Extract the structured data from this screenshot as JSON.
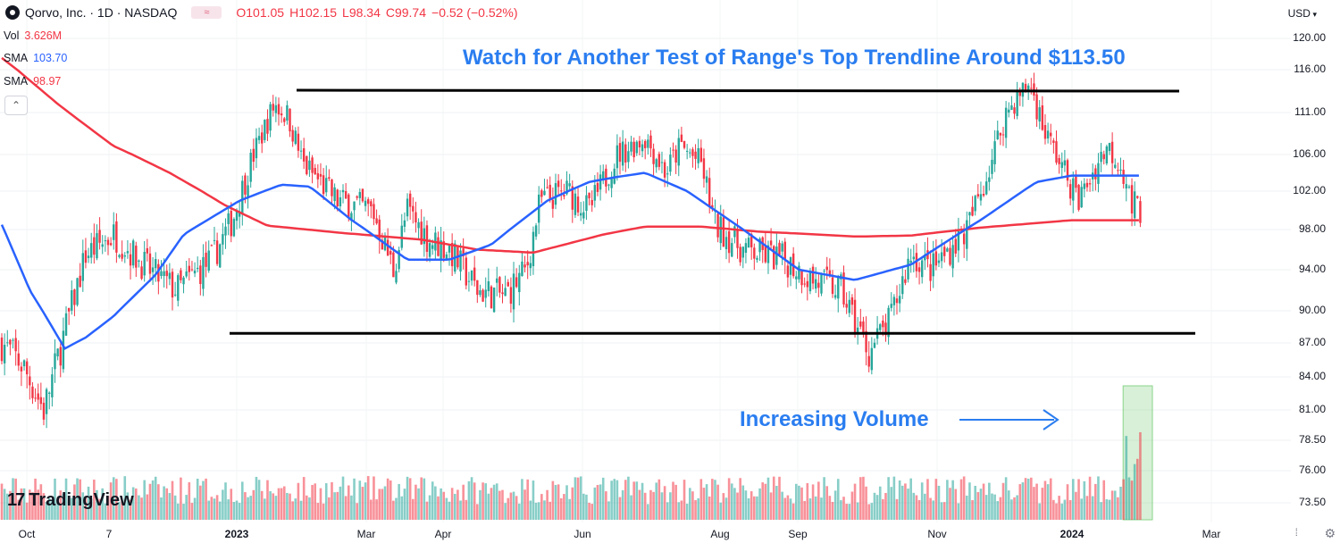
{
  "header": {
    "symbol_title": "Qorvo, Inc. · 1D · NASDAQ",
    "open": "O101.05",
    "high": "H102.15",
    "low": "L98.34",
    "close": "C99.74",
    "change": "−0.52 (−0.52%)"
  },
  "indicators": {
    "vol_label": "Vol",
    "vol_value": "3.626M",
    "sma1_label": "SMA",
    "sma1_value": "103.70",
    "sma2_label": "SMA",
    "sma2_value": "98.97"
  },
  "currency": "USD",
  "annotations": {
    "top": "Watch for Another Test of Range's Top Trendline Around $113.50",
    "volume": "Increasing Volume"
  },
  "logo": {
    "mark": "17",
    "text": "TradingView"
  },
  "colors": {
    "up": "#26a69a",
    "down": "#f23645",
    "sma_fast": "#2962ff",
    "sma_slow": "#f23645",
    "annotation": "#2a7df0",
    "trendline": "#000000",
    "highlight": "#8bd58b"
  },
  "icons": [
    "symbol-icon",
    "compare-icon",
    "collapse-icon",
    "settings-icon",
    "navigation-icon",
    "arrow-right-icon"
  ],
  "chart_data": {
    "type": "candlestick",
    "y_axis_labels": [
      "120.00",
      "116.00",
      "111.00",
      "106.00",
      "102.00",
      "98.00",
      "94.00",
      "90.00",
      "87.00",
      "84.00",
      "81.00",
      "78.50",
      "76.00",
      "73.50"
    ],
    "y_ticks": [
      120.0,
      116.0,
      111.0,
      106.0,
      102.0,
      98.0,
      94.0,
      90.0,
      87.0,
      84.0,
      81.0,
      78.5,
      76.0,
      73.5
    ],
    "x_axis_labels": [
      {
        "label": "Oct",
        "strong": false
      },
      {
        "label": "7",
        "strong": false
      },
      {
        "label": "2023",
        "strong": true
      },
      {
        "label": "Mar",
        "strong": false
      },
      {
        "label": "Apr",
        "strong": false
      },
      {
        "label": "Jun",
        "strong": false
      },
      {
        "label": "Aug",
        "strong": false
      },
      {
        "label": "Sep",
        "strong": false
      },
      {
        "label": "Nov",
        "strong": false
      },
      {
        "label": "2024",
        "strong": true
      },
      {
        "label": "Mar",
        "strong": false
      }
    ],
    "trendlines": [
      {
        "name": "range-top",
        "from": {
          "date": "2023-02-02",
          "price": 113.6
        },
        "to": {
          "date": "2024-02-12",
          "price": 113.5
        }
      },
      {
        "name": "range-bottom",
        "from": {
          "date": "2022-12-05",
          "price": 87.9
        },
        "to": {
          "date": "2024-02-21",
          "price": 87.9
        }
      }
    ],
    "sma_fast_keypoints": [
      [
        0,
        98.5
      ],
      [
        20,
        92
      ],
      [
        45,
        86.5
      ],
      [
        60,
        87.5
      ],
      [
        80,
        89.5
      ],
      [
        110,
        93.5
      ],
      [
        130,
        97.5
      ],
      [
        170,
        101
      ],
      [
        200,
        102.7
      ],
      [
        220,
        102.5
      ],
      [
        250,
        99
      ],
      [
        290,
        95
      ],
      [
        320,
        95
      ],
      [
        350,
        96.5
      ],
      [
        390,
        101
      ],
      [
        420,
        103
      ],
      [
        438,
        103.5
      ],
      [
        460,
        104
      ],
      [
        490,
        102
      ],
      [
        530,
        98
      ],
      [
        570,
        94
      ],
      [
        610,
        93
      ],
      [
        650,
        94.5
      ],
      [
        700,
        99
      ],
      [
        740,
        103
      ],
      [
        765,
        103.7
      ]
    ],
    "sma_slow_keypoints": [
      [
        0,
        117.5
      ],
      [
        40,
        112
      ],
      [
        80,
        107
      ],
      [
        120,
        104
      ],
      [
        160,
        100.5
      ],
      [
        190,
        98.4
      ],
      [
        240,
        97.7
      ],
      [
        300,
        97
      ],
      [
        340,
        96
      ],
      [
        380,
        95.7
      ],
      [
        430,
        97.5
      ],
      [
        460,
        98.3
      ],
      [
        500,
        98.3
      ],
      [
        540,
        97.8
      ],
      [
        570,
        97.6
      ],
      [
        610,
        97.3
      ],
      [
        650,
        97.4
      ],
      [
        700,
        98.2
      ],
      [
        765,
        98.97
      ]
    ],
    "price_keypoints": [
      [
        0,
        87
      ],
      [
        15,
        85
      ],
      [
        30,
        81
      ],
      [
        45,
        88
      ],
      [
        60,
        95.5
      ],
      [
        80,
        97.5
      ],
      [
        105,
        94
      ],
      [
        125,
        92
      ],
      [
        150,
        95
      ],
      [
        165,
        99
      ],
      [
        180,
        106
      ],
      [
        195,
        112
      ],
      [
        205,
        110.5
      ],
      [
        215,
        105
      ],
      [
        240,
        101
      ],
      [
        265,
        100
      ],
      [
        280,
        94
      ],
      [
        290,
        100
      ],
      [
        305,
        97
      ],
      [
        320,
        96
      ],
      [
        340,
        92
      ],
      [
        360,
        91.5
      ],
      [
        375,
        94
      ],
      [
        385,
        101
      ],
      [
        405,
        102
      ],
      [
        420,
        100
      ],
      [
        440,
        106
      ],
      [
        460,
        108
      ],
      [
        475,
        104
      ],
      [
        485,
        107
      ],
      [
        500,
        105
      ],
      [
        510,
        98.5
      ],
      [
        530,
        96
      ],
      [
        560,
        95
      ],
      [
        580,
        93
      ],
      [
        600,
        92
      ],
      [
        610,
        89
      ],
      [
        620,
        86.2
      ],
      [
        635,
        89
      ],
      [
        650,
        95.5
      ],
      [
        665,
        94
      ],
      [
        690,
        98
      ],
      [
        705,
        104
      ],
      [
        718,
        111
      ],
      [
        735,
        114.5
      ],
      [
        745,
        109
      ],
      [
        760,
        104
      ],
      [
        770,
        101
      ],
      [
        790,
        107
      ],
      [
        800,
        105
      ],
      [
        808,
        101
      ],
      [
        815,
        99.74
      ]
    ],
    "highlight_box": {
      "from_index": 803,
      "to_index": 815
    }
  }
}
